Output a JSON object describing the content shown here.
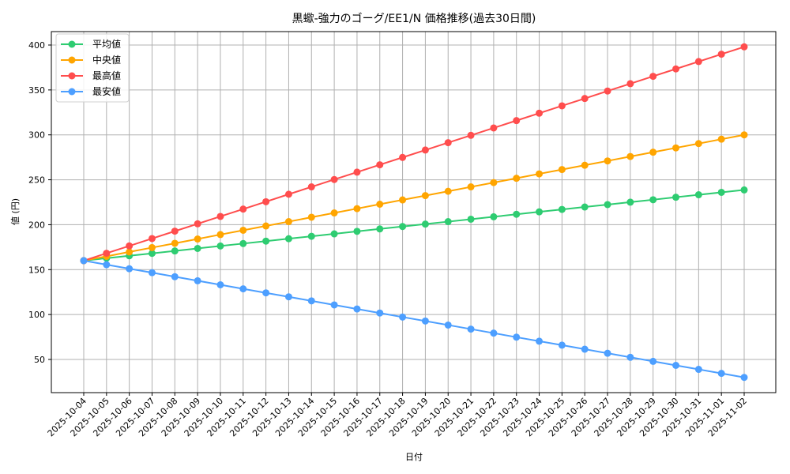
{
  "chart_data": {
    "type": "line",
    "title": "黒蠍-強力のゴーグ/EE1/N 価格推移(過去30日間)",
    "xlabel": "日付",
    "ylabel": "値 (円)",
    "ylim": [
      20,
      418
    ],
    "yticks": [
      50,
      100,
      150,
      200,
      250,
      300,
      350,
      400
    ],
    "grid": true,
    "legend_position": "upper left",
    "x": [
      "2025-10-04",
      "2025-10-05",
      "2025-10-06",
      "2025-10-07",
      "2025-10-08",
      "2025-10-09",
      "2025-10-10",
      "2025-10-11",
      "2025-10-12",
      "2025-10-13",
      "2025-10-14",
      "2025-10-15",
      "2025-10-16",
      "2025-10-17",
      "2025-10-18",
      "2025-10-19",
      "2025-10-20",
      "2025-10-21",
      "2025-10-22",
      "2025-10-23",
      "2025-10-24",
      "2025-10-25",
      "2025-10-26",
      "2025-10-27",
      "2025-10-28",
      "2025-10-29",
      "2025-10-30",
      "2025-10-31",
      "2025-11-01",
      "2025-11-02"
    ],
    "series": [
      {
        "name": "平均値",
        "color": "#2ecc71",
        "values": [
          160,
          162.7,
          165.4,
          168.1,
          170.8,
          173.6,
          176.3,
          179,
          181.7,
          184.4,
          187.1,
          189.8,
          192.6,
          195.3,
          198,
          200.7,
          203.4,
          206.1,
          208.8,
          211.6,
          214.3,
          217,
          219.7,
          222.4,
          225.1,
          227.8,
          230.6,
          233.3,
          236,
          238.7
        ]
      },
      {
        "name": "中央値",
        "color": "#ffa500",
        "values": [
          160,
          164.8,
          169.7,
          174.5,
          179.3,
          184.1,
          189,
          193.8,
          198.6,
          203.4,
          208.3,
          213.1,
          217.9,
          222.8,
          227.6,
          232.4,
          237.2,
          242.1,
          246.9,
          251.7,
          256.6,
          261.4,
          266.2,
          271,
          275.9,
          280.7,
          285.5,
          290.3,
          295.2,
          300
        ]
      },
      {
        "name": "最高値",
        "color": "#ff4d4d",
        "values": [
          160,
          168.2,
          176.4,
          184.6,
          192.8,
          201,
          209.2,
          217.4,
          225.6,
          233.9,
          242.1,
          250.3,
          258.5,
          266.7,
          274.9,
          283.1,
          291.3,
          299.5,
          307.7,
          315.9,
          324.1,
          332.3,
          340.5,
          348.8,
          357,
          365.2,
          373.4,
          381.6,
          389.8,
          398
        ]
      },
      {
        "name": "最安値",
        "color": "#4d9fff",
        "values": [
          160,
          155.5,
          151,
          146.6,
          142.1,
          137.6,
          133.1,
          128.6,
          124.1,
          119.7,
          115.2,
          110.7,
          106.2,
          101.7,
          97.2,
          92.8,
          88.3,
          83.8,
          79.3,
          74.8,
          70.3,
          65.9,
          61.4,
          56.9,
          52.4,
          47.9,
          43.4,
          39,
          34.5,
          30
        ]
      }
    ]
  }
}
